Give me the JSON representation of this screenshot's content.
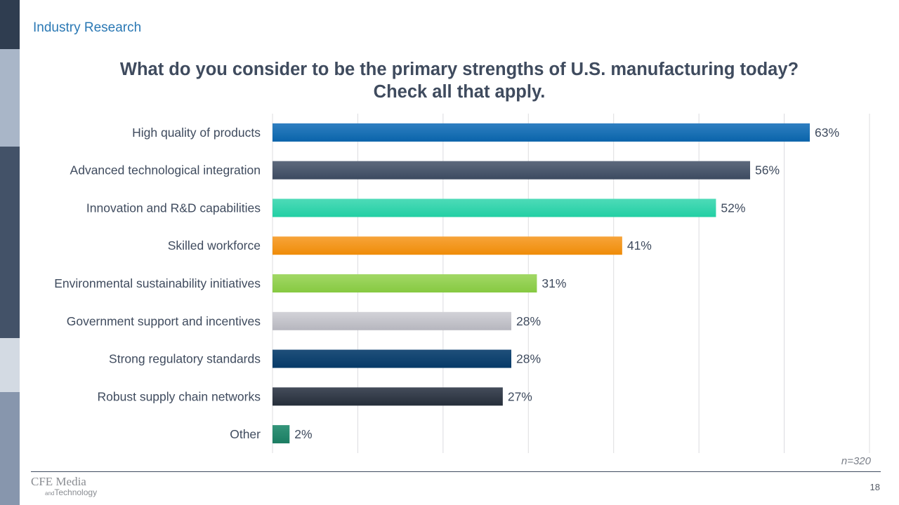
{
  "header": {
    "section_label": "Industry Research"
  },
  "sidebar": {
    "colors": [
      "#2f3d50",
      "#a9b6c8",
      "#435268",
      "#d3dae3",
      "#8796ad"
    ]
  },
  "chart_data": {
    "type": "bar",
    "orientation": "horizontal",
    "title": "What do you consider to be the primary strengths of U.S. manufacturing today?",
    "subtitle": "Check all that apply.",
    "xlabel": "",
    "ylabel": "",
    "xlim": [
      0,
      70
    ],
    "grid": true,
    "value_suffix": "%",
    "categories": [
      "High quality of products",
      "Advanced technological integration",
      "Innovation and R&D capabilities",
      "Skilled workforce",
      "Environmental sustainability initiatives",
      "Government support and incentives",
      "Strong regulatory standards",
      "Robust supply chain networks",
      "Other"
    ],
    "values": [
      63,
      56,
      52,
      41,
      31,
      28,
      28,
      27,
      2
    ],
    "colors": [
      [
        "#2f7fc1",
        "#0a64aa"
      ],
      [
        "#5e6a7d",
        "#3c4a60"
      ],
      [
        "#4edbb8",
        "#22cfa4"
      ],
      [
        "#f7a43a",
        "#ef8c08"
      ],
      [
        "#a2d866",
        "#86c941"
      ],
      [
        "#d2d2d8",
        "#b6b6be"
      ],
      [
        "#1f4f7a",
        "#063a68"
      ],
      [
        "#444c5a",
        "#262e3a"
      ],
      [
        "#34957a",
        "#1b7d62"
      ]
    ],
    "sample_size": "n=320"
  },
  "footer": {
    "logo_main": "CFE Media",
    "logo_and": "and",
    "logo_sub": "Technology",
    "page_number": "18"
  }
}
